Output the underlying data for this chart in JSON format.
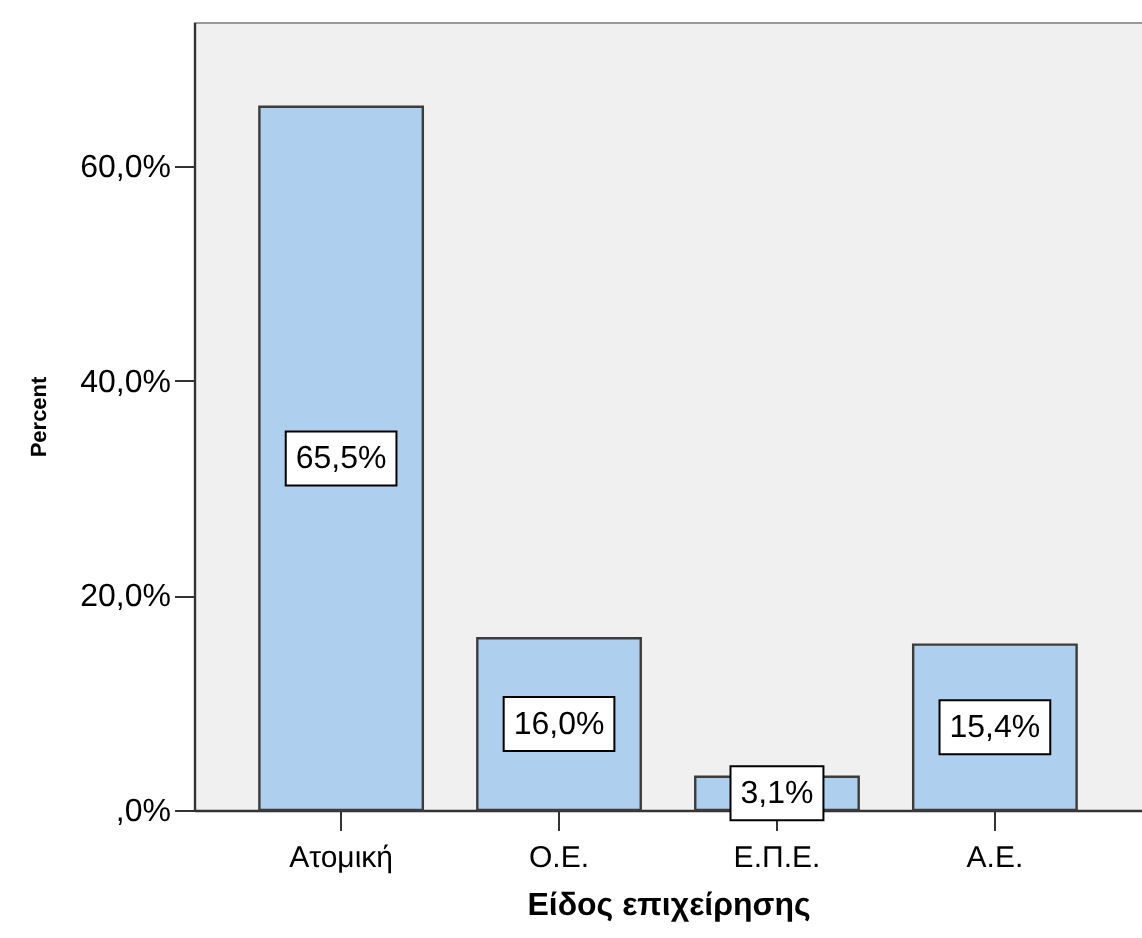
{
  "chart_data": {
    "type": "bar",
    "xlabel": "Είδος επιχείρησης",
    "ylabel": "Percent",
    "categories": [
      "Ατομική",
      "Ο.Ε.",
      "Ε.Π.Ε.",
      "Α.Ε."
    ],
    "values": [
      65.5,
      16.0,
      3.1,
      15.4
    ],
    "color": "#aecfee",
    "value_labels": [
      "65,5%",
      "16,0%",
      "3,1%",
      "15,4%"
    ],
    "ylim": [
      0,
      73.4
    ],
    "yticks": [
      {
        "value": 0,
        "label": ",0%"
      },
      {
        "value": 20,
        "label": "20,0%"
      },
      {
        "value": 40,
        "label": "40,0%"
      },
      {
        "value": 60,
        "label": "60,0%"
      }
    ]
  }
}
